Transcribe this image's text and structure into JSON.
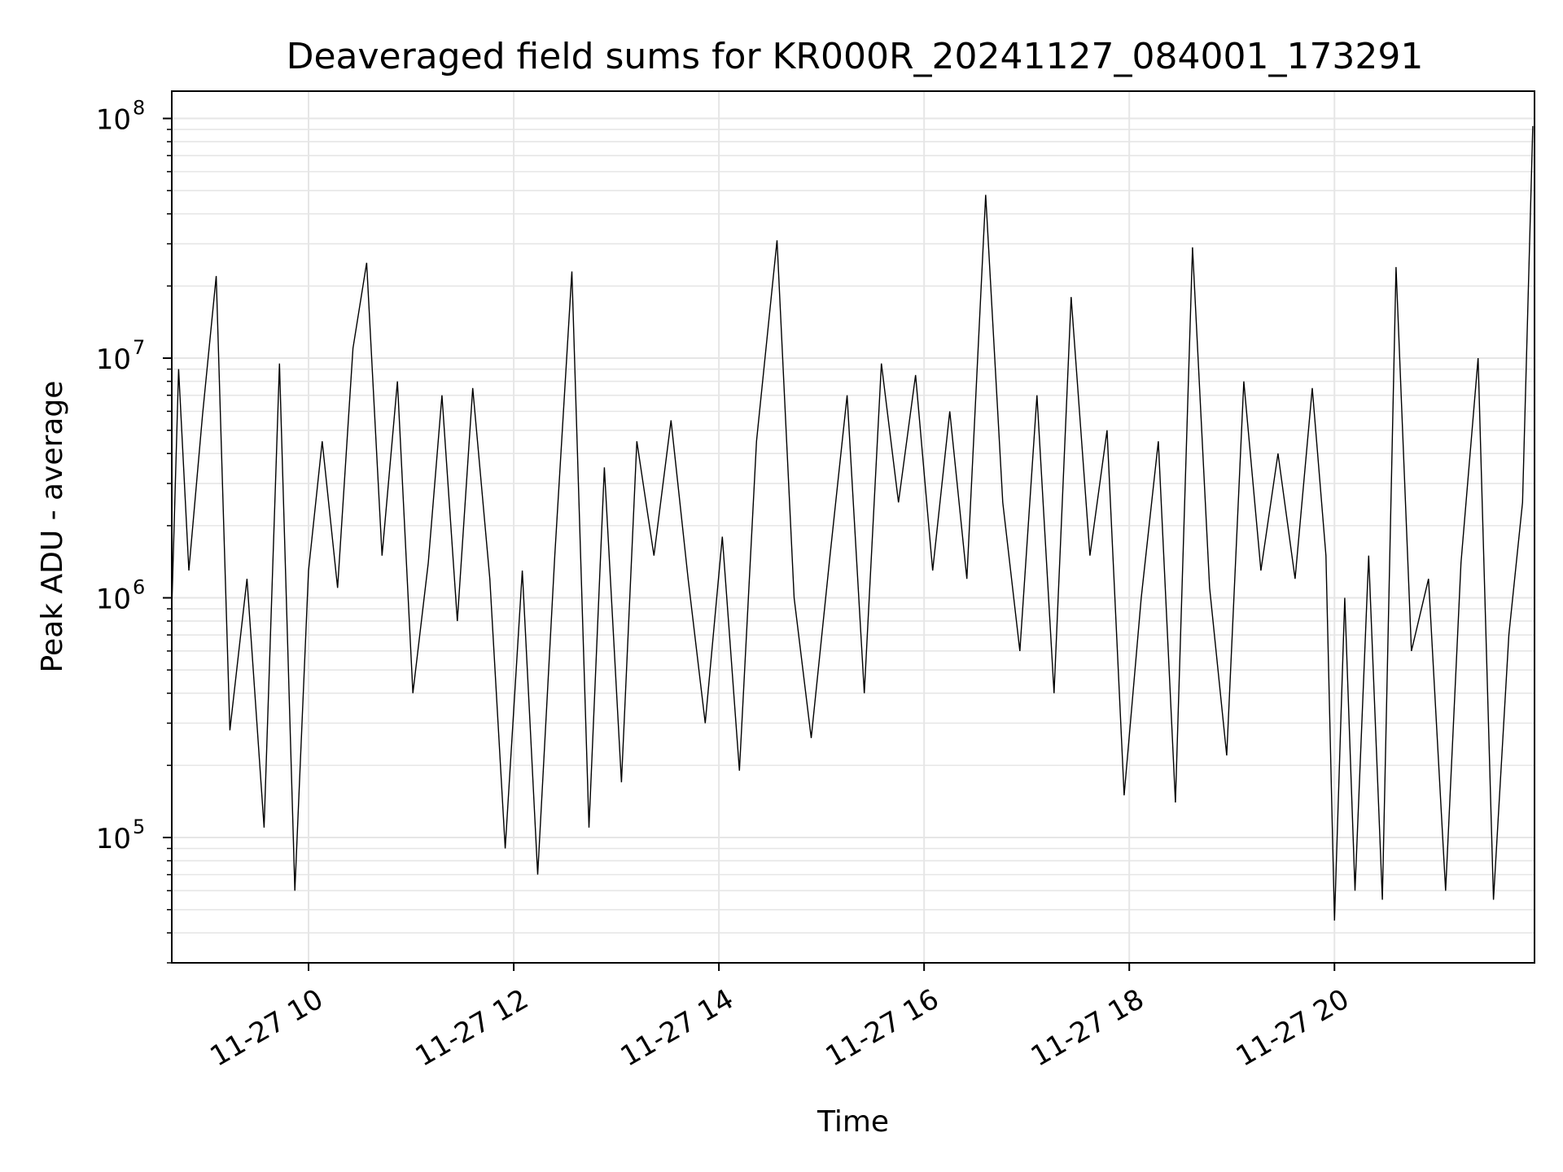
{
  "chart_data": {
    "type": "line",
    "title": "Deaveraged field sums for KR000R_20241127_084001_173291",
    "xlabel": "Time",
    "ylabel": "Peak ADU - average",
    "y_scale": "log",
    "ylim": [
      30000,
      130000000
    ],
    "xlim": [
      "2024-11-27 08:40",
      "2024-11-27 21:57"
    ],
    "grid": true,
    "grid_color": "#e6e6e6",
    "line_color": "#000000",
    "x_ticks": [
      {
        "value": "2024-11-27 10:00",
        "label": "11-27 10"
      },
      {
        "value": "2024-11-27 12:00",
        "label": "11-27 12"
      },
      {
        "value": "2024-11-27 14:00",
        "label": "11-27 14"
      },
      {
        "value": "2024-11-27 16:00",
        "label": "11-27 16"
      },
      {
        "value": "2024-11-27 18:00",
        "label": "11-27 18"
      },
      {
        "value": "2024-11-27 20:00",
        "label": "11-27 20"
      }
    ],
    "y_ticks": [
      {
        "value": 100000,
        "base": "10",
        "exp": "5"
      },
      {
        "value": 1000000,
        "base": "10",
        "exp": "6"
      },
      {
        "value": 10000000,
        "base": "10",
        "exp": "7"
      },
      {
        "value": 100000000,
        "base": "10",
        "exp": "8"
      }
    ],
    "series": [
      {
        "x": [
          "2024-11-27 08:40",
          "2024-11-27 08:44",
          "2024-11-27 08:50",
          "2024-11-27 08:58",
          "2024-11-27 09:06",
          "2024-11-27 09:14",
          "2024-11-27 09:24",
          "2024-11-27 09:34",
          "2024-11-27 09:43",
          "2024-11-27 09:52",
          "2024-11-27 10:00",
          "2024-11-27 10:08",
          "2024-11-27 10:17",
          "2024-11-27 10:26",
          "2024-11-27 10:34",
          "2024-11-27 10:43",
          "2024-11-27 10:52",
          "2024-11-27 11:01",
          "2024-11-27 11:10",
          "2024-11-27 11:18",
          "2024-11-27 11:27",
          "2024-11-27 11:36",
          "2024-11-27 11:46",
          "2024-11-27 11:55",
          "2024-11-27 12:05",
          "2024-11-27 12:14",
          "2024-11-27 12:24",
          "2024-11-27 12:34",
          "2024-11-27 12:44",
          "2024-11-27 12:53",
          "2024-11-27 13:03",
          "2024-11-27 13:12",
          "2024-11-27 13:22",
          "2024-11-27 13:32",
          "2024-11-27 13:42",
          "2024-11-27 13:52",
          "2024-11-27 14:02",
          "2024-11-27 14:12",
          "2024-11-27 14:22",
          "2024-11-27 14:34",
          "2024-11-27 14:44",
          "2024-11-27 14:54",
          "2024-11-27 15:05",
          "2024-11-27 15:15",
          "2024-11-27 15:25",
          "2024-11-27 15:35",
          "2024-11-27 15:45",
          "2024-11-27 15:55",
          "2024-11-27 16:05",
          "2024-11-27 16:15",
          "2024-11-27 16:25",
          "2024-11-27 16:36",
          "2024-11-27 16:46",
          "2024-11-27 16:56",
          "2024-11-27 17:06",
          "2024-11-27 17:16",
          "2024-11-27 17:26",
          "2024-11-27 17:37",
          "2024-11-27 17:47",
          "2024-11-27 17:57",
          "2024-11-27 18:07",
          "2024-11-27 18:17",
          "2024-11-27 18:27",
          "2024-11-27 18:37",
          "2024-11-27 18:47",
          "2024-11-27 18:57",
          "2024-11-27 19:07",
          "2024-11-27 19:17",
          "2024-11-27 19:27",
          "2024-11-27 19:37",
          "2024-11-27 19:47",
          "2024-11-27 19:55",
          "2024-11-27 20:00",
          "2024-11-27 20:06",
          "2024-11-27 20:12",
          "2024-11-27 20:20",
          "2024-11-27 20:28",
          "2024-11-27 20:36",
          "2024-11-27 20:45",
          "2024-11-27 20:55",
          "2024-11-27 21:05",
          "2024-11-27 21:14",
          "2024-11-27 21:24",
          "2024-11-27 21:33",
          "2024-11-27 21:42",
          "2024-11-27 21:50",
          "2024-11-27 21:56"
        ],
        "y": [
          900000,
          9000000,
          1300000,
          5800000,
          22000000,
          280000,
          1200000,
          110000,
          9500000,
          60000,
          1300000,
          4500000,
          1100000,
          11000000,
          25000000,
          1500000,
          8000000,
          400000,
          1400000,
          7000000,
          800000,
          7500000,
          1200000,
          90000,
          1300000,
          70000,
          1500000,
          23000000,
          110000,
          3500000,
          170000,
          4500000,
          1500000,
          5500000,
          1200000,
          300000,
          1800000,
          190000,
          4500000,
          31000000,
          1000000,
          260000,
          1500000,
          7000000,
          400000,
          9500000,
          2500000,
          8500000,
          1300000,
          6000000,
          1200000,
          48000000,
          2500000,
          600000,
          7000000,
          400000,
          18000000,
          1500000,
          5000000,
          150000,
          1000000,
          4500000,
          140000,
          29000000,
          1100000,
          220000,
          8000000,
          1300000,
          4000000,
          1200000,
          7500000,
          1500000,
          45000,
          1000000,
          60000,
          1500000,
          55000,
          24000000,
          600000,
          1200000,
          60000,
          1400000,
          10000000,
          55000,
          700000,
          2500000,
          93000000
        ]
      }
    ]
  }
}
